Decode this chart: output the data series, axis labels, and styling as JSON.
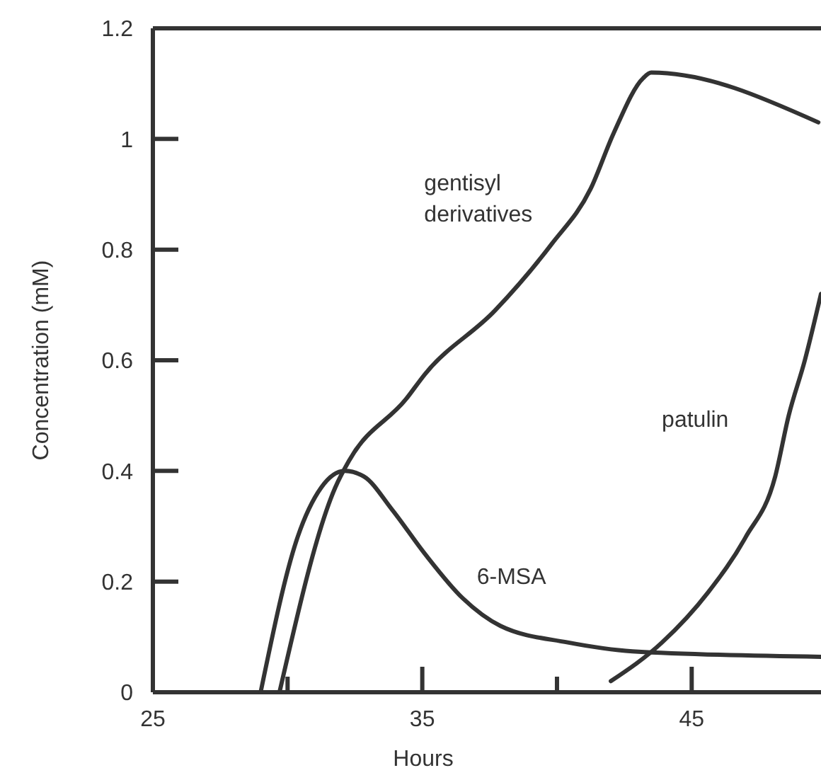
{
  "chart_data": {
    "type": "line",
    "xlabel": "Hours",
    "ylabel": "Concentration (mM)",
    "xlim": [
      25,
      49.8
    ],
    "ylim": [
      0,
      1.2
    ],
    "xticks": [
      25,
      {
        "value": 30,
        "label": null
      },
      35,
      {
        "value": 40,
        "label": null
      },
      45
    ],
    "yticks": [
      0,
      0.2,
      0.4,
      0.6,
      0.8,
      1,
      1.2
    ],
    "grid": false,
    "legend": false,
    "marker": "none",
    "line_style": "solid",
    "series": [
      {
        "name": "gentisyl derivatives",
        "color": "#333333",
        "x": [
          29.7,
          31.77,
          32.3,
          34.4,
          35.1,
          37.7,
          39.8,
          41.25,
          42.1,
          43.2,
          43.5,
          49.7
        ],
        "values": [
          0,
          0.37,
          0.42,
          0.53,
          0.575,
          0.69,
          0.81,
          0.91,
          1.01,
          1.11,
          1.12,
          1.03
        ]
      },
      {
        "name": "6-MSA",
        "color": "#333333",
        "x": [
          29.0,
          30.37,
          31.25,
          32.12,
          32.83,
          33.88,
          35.1,
          36.5,
          37.9,
          40.4,
          42.8,
          49.8
        ],
        "values": [
          0,
          0.28,
          0.37,
          0.4,
          0.39,
          0.33,
          0.25,
          0.17,
          0.12,
          0.09,
          0.074,
          0.064
        ]
      },
      {
        "name": "patulin",
        "color": "#333333",
        "x": [
          42.0,
          43.9,
          45.6,
          47.0,
          48.1,
          48.6,
          49.2,
          49.8
        ],
        "values": [
          0.02,
          0.09,
          0.18,
          0.28,
          0.39,
          0.5,
          0.6,
          0.72
        ]
      }
    ]
  }
}
